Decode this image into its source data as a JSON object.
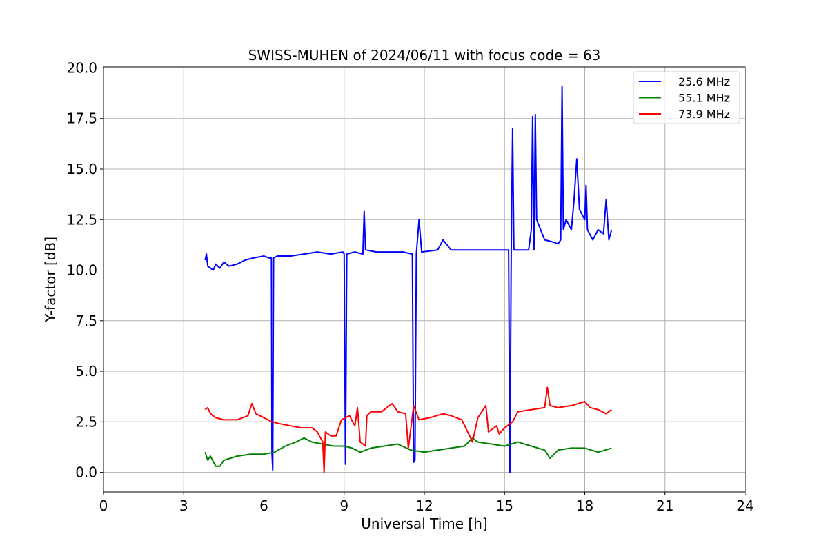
{
  "chart_data": {
    "type": "line",
    "title": "SWISS-MUHEN of 2024/06/11 with focus code = 63",
    "xlabel": "Universal Time [h]",
    "ylabel": "Y-factor [dB]",
    "xlim": [
      0,
      24
    ],
    "ylim": [
      -0.97,
      20.05
    ],
    "x_ticks": [
      0,
      3,
      6,
      9,
      12,
      15,
      18,
      21,
      24
    ],
    "x_tick_labels": [
      "0",
      "3",
      "6",
      "9",
      "12",
      "15",
      "18",
      "21",
      "24"
    ],
    "y_ticks": [
      0,
      2.5,
      5,
      7.5,
      10,
      12.5,
      15,
      17.5,
      20
    ],
    "y_tick_labels": [
      "0.0",
      "2.5",
      "5.0",
      "7.5",
      "10.0",
      "12.5",
      "15.0",
      "17.5",
      "20.0"
    ],
    "grid": true,
    "legend_position": "top-right",
    "series": [
      {
        "name": "25.6 MHz",
        "color": "#0000ff",
        "points": [
          [
            3.8,
            10.5
          ],
          [
            3.85,
            10.8
          ],
          [
            3.9,
            10.2
          ],
          [
            4.0,
            10.1
          ],
          [
            4.1,
            10.0
          ],
          [
            4.2,
            10.3
          ],
          [
            4.35,
            10.1
          ],
          [
            4.5,
            10.4
          ],
          [
            4.7,
            10.2
          ],
          [
            5.0,
            10.3
          ],
          [
            5.3,
            10.5
          ],
          [
            5.6,
            10.6
          ],
          [
            6.0,
            10.7
          ],
          [
            6.2,
            10.6
          ],
          [
            6.28,
            10.6
          ],
          [
            6.3,
            1.0
          ],
          [
            6.33,
            0.1
          ],
          [
            6.36,
            10.6
          ],
          [
            6.5,
            10.7
          ],
          [
            7.0,
            10.7
          ],
          [
            7.5,
            10.8
          ],
          [
            8.0,
            10.9
          ],
          [
            8.5,
            10.8
          ],
          [
            8.95,
            10.9
          ],
          [
            9.0,
            10.8
          ],
          [
            9.05,
            0.4
          ],
          [
            9.1,
            10.8
          ],
          [
            9.4,
            10.9
          ],
          [
            9.7,
            10.8
          ],
          [
            9.75,
            12.9
          ],
          [
            9.8,
            11.0
          ],
          [
            10.2,
            10.9
          ],
          [
            10.8,
            10.9
          ],
          [
            11.2,
            10.9
          ],
          [
            11.55,
            10.8
          ],
          [
            11.6,
            0.5
          ],
          [
            11.65,
            0.6
          ],
          [
            11.7,
            10.8
          ],
          [
            11.8,
            12.5
          ],
          [
            11.9,
            10.9
          ],
          [
            12.5,
            11.0
          ],
          [
            12.7,
            11.5
          ],
          [
            13.0,
            11.0
          ],
          [
            13.5,
            11.0
          ],
          [
            14.0,
            11.0
          ],
          [
            14.5,
            11.0
          ],
          [
            15.0,
            11.0
          ],
          [
            15.15,
            11.0
          ],
          [
            15.2,
            0.0
          ],
          [
            15.25,
            10.9
          ],
          [
            15.3,
            17.0
          ],
          [
            15.35,
            11.0
          ],
          [
            15.5,
            11.0
          ],
          [
            15.9,
            11.0
          ],
          [
            16.0,
            12.0
          ],
          [
            16.05,
            17.6
          ],
          [
            16.1,
            11.0
          ],
          [
            16.15,
            17.7
          ],
          [
            16.2,
            12.5
          ],
          [
            16.5,
            11.5
          ],
          [
            16.8,
            11.4
          ],
          [
            17.0,
            11.3
          ],
          [
            17.1,
            11.5
          ],
          [
            17.15,
            19.1
          ],
          [
            17.2,
            12.0
          ],
          [
            17.3,
            12.5
          ],
          [
            17.5,
            12.0
          ],
          [
            17.6,
            13.5
          ],
          [
            17.7,
            15.5
          ],
          [
            17.8,
            13.0
          ],
          [
            18.0,
            12.5
          ],
          [
            18.05,
            14.2
          ],
          [
            18.1,
            12.0
          ],
          [
            18.3,
            11.5
          ],
          [
            18.5,
            12.0
          ],
          [
            18.7,
            11.8
          ],
          [
            18.8,
            13.5
          ],
          [
            18.9,
            11.5
          ],
          [
            19.0,
            12.0
          ]
        ]
      },
      {
        "name": "55.1 MHz",
        "color": "#008000",
        "points": [
          [
            3.8,
            1.0
          ],
          [
            3.9,
            0.6
          ],
          [
            4.0,
            0.8
          ],
          [
            4.2,
            0.3
          ],
          [
            4.35,
            0.3
          ],
          [
            4.5,
            0.6
          ],
          [
            5.0,
            0.8
          ],
          [
            5.5,
            0.9
          ],
          [
            6.0,
            0.9
          ],
          [
            6.4,
            1.0
          ],
          [
            6.8,
            1.3
          ],
          [
            7.2,
            1.5
          ],
          [
            7.5,
            1.7
          ],
          [
            7.8,
            1.5
          ],
          [
            8.2,
            1.4
          ],
          [
            8.6,
            1.3
          ],
          [
            9.0,
            1.3
          ],
          [
            9.3,
            1.2
          ],
          [
            9.6,
            1.0
          ],
          [
            10.0,
            1.2
          ],
          [
            10.5,
            1.3
          ],
          [
            11.0,
            1.4
          ],
          [
            11.5,
            1.1
          ],
          [
            12.0,
            1.0
          ],
          [
            12.5,
            1.1
          ],
          [
            13.0,
            1.2
          ],
          [
            13.5,
            1.3
          ],
          [
            13.8,
            1.7
          ],
          [
            14.0,
            1.5
          ],
          [
            14.5,
            1.4
          ],
          [
            15.0,
            1.3
          ],
          [
            15.5,
            1.5
          ],
          [
            16.0,
            1.3
          ],
          [
            16.5,
            1.1
          ],
          [
            16.7,
            0.7
          ],
          [
            17.0,
            1.1
          ],
          [
            17.5,
            1.2
          ],
          [
            18.0,
            1.2
          ],
          [
            18.5,
            1.0
          ],
          [
            19.0,
            1.2
          ]
        ]
      },
      {
        "name": "73.9 MHz",
        "color": "#ff0000",
        "points": [
          [
            3.8,
            3.1
          ],
          [
            3.9,
            3.2
          ],
          [
            4.0,
            2.9
          ],
          [
            4.2,
            2.7
          ],
          [
            4.5,
            2.6
          ],
          [
            5.0,
            2.6
          ],
          [
            5.4,
            2.8
          ],
          [
            5.55,
            3.4
          ],
          [
            5.7,
            2.9
          ],
          [
            6.0,
            2.7
          ],
          [
            6.3,
            2.5
          ],
          [
            6.6,
            2.4
          ],
          [
            7.0,
            2.3
          ],
          [
            7.4,
            2.2
          ],
          [
            7.8,
            2.2
          ],
          [
            8.0,
            2.0
          ],
          [
            8.2,
            1.5
          ],
          [
            8.25,
            0.0
          ],
          [
            8.3,
            2.0
          ],
          [
            8.5,
            1.8
          ],
          [
            8.7,
            1.8
          ],
          [
            8.9,
            2.6
          ],
          [
            9.2,
            2.8
          ],
          [
            9.4,
            2.3
          ],
          [
            9.5,
            3.2
          ],
          [
            9.6,
            1.5
          ],
          [
            9.8,
            1.3
          ],
          [
            9.85,
            2.8
          ],
          [
            10.0,
            3.0
          ],
          [
            10.4,
            3.0
          ],
          [
            10.8,
            3.4
          ],
          [
            11.0,
            3.0
          ],
          [
            11.3,
            2.9
          ],
          [
            11.4,
            1.2
          ],
          [
            11.5,
            2.2
          ],
          [
            11.6,
            3.3
          ],
          [
            11.8,
            2.6
          ],
          [
            12.2,
            2.7
          ],
          [
            12.7,
            2.9
          ],
          [
            13.0,
            2.8
          ],
          [
            13.4,
            2.6
          ],
          [
            13.8,
            1.5
          ],
          [
            14.0,
            2.7
          ],
          [
            14.3,
            3.3
          ],
          [
            14.4,
            2.0
          ],
          [
            14.7,
            2.3
          ],
          [
            14.8,
            1.9
          ],
          [
            15.0,
            2.2
          ],
          [
            15.3,
            2.5
          ],
          [
            15.5,
            3.0
          ],
          [
            16.0,
            3.1
          ],
          [
            16.5,
            3.2
          ],
          [
            16.6,
            4.2
          ],
          [
            16.7,
            3.3
          ],
          [
            17.0,
            3.2
          ],
          [
            17.5,
            3.3
          ],
          [
            18.0,
            3.5
          ],
          [
            18.2,
            3.2
          ],
          [
            18.5,
            3.1
          ],
          [
            18.8,
            2.9
          ],
          [
            19.0,
            3.1
          ]
        ]
      }
    ]
  }
}
